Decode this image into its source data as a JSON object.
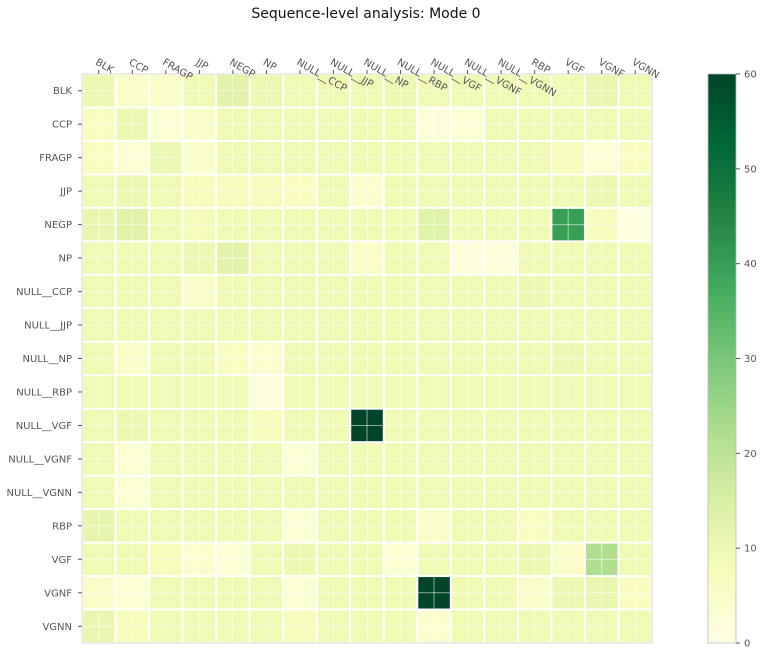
{
  "chart_data": {
    "type": "heatmap",
    "title": "Sequence-level analysis: Mode 0",
    "xlabel": "",
    "ylabel": "",
    "x_categories": [
      "BLK",
      "CCP",
      "FRAGP",
      "JJP",
      "NEGP",
      "NP",
      "NULL__CCP",
      "NULL__JJP",
      "NULL__NP",
      "NULL__RBP",
      "NULL__VGF",
      "NULL__VGNF",
      "NULL__VGNN",
      "RBP",
      "VGF",
      "VGNF",
      "VGNN"
    ],
    "y_categories": [
      "BLK",
      "CCP",
      "FRAGP",
      "JJP",
      "NEGP",
      "NP",
      "NULL__CCP",
      "NULL__JJP",
      "NULL__NP",
      "NULL__RBP",
      "NULL__VGF",
      "NULL__VGNF",
      "NULL__VGNN",
      "RBP",
      "VGF",
      "VGNF",
      "VGNN"
    ],
    "values": [
      [
        10,
        5,
        5,
        9,
        13,
        10,
        9,
        9,
        9,
        10,
        9,
        9,
        9,
        9,
        9,
        11,
        9
      ],
      [
        6,
        10,
        3,
        5,
        9,
        9,
        9,
        9,
        9,
        9,
        2,
        3,
        9,
        9,
        9,
        9,
        9
      ],
      [
        6,
        3,
        10,
        5,
        9,
        9,
        9,
        9,
        9,
        9,
        9,
        9,
        9,
        9,
        7,
        3,
        6
      ],
      [
        9,
        10,
        9,
        7,
        7,
        7,
        6,
        9,
        4,
        9,
        9,
        9,
        9,
        9,
        9,
        10,
        9
      ],
      [
        11,
        13,
        9,
        8,
        9,
        9,
        9,
        9,
        9,
        9,
        13,
        9,
        9,
        9,
        40,
        7,
        1
      ],
      [
        9,
        9,
        9,
        10,
        13,
        9,
        9,
        9,
        5,
        9,
        9,
        2,
        2,
        9,
        9,
        9,
        9
      ],
      [
        9,
        9,
        9,
        5,
        9,
        9,
        9,
        9,
        9,
        9,
        9,
        9,
        9,
        10,
        9,
        9,
        9
      ],
      [
        9,
        9,
        9,
        9,
        9,
        9,
        9,
        9,
        9,
        9,
        9,
        9,
        9,
        9,
        9,
        9,
        9
      ],
      [
        9,
        5,
        9,
        9,
        6,
        4,
        9,
        9,
        9,
        9,
        9,
        9,
        9,
        9,
        10,
        9,
        9
      ],
      [
        9,
        9,
        9,
        9,
        9,
        2,
        9,
        9,
        9,
        9,
        9,
        9,
        9,
        9,
        9,
        9,
        9
      ],
      [
        9,
        10,
        9,
        9,
        9,
        7,
        9,
        9,
        60,
        9,
        9,
        9,
        9,
        9,
        9,
        9,
        9
      ],
      [
        9,
        3,
        9,
        9,
        9,
        9,
        3,
        9,
        9,
        9,
        9,
        9,
        9,
        9,
        9,
        9,
        9
      ],
      [
        9,
        3,
        9,
        9,
        9,
        9,
        9,
        9,
        9,
        9,
        9,
        9,
        9,
        9,
        9,
        9,
        9
      ],
      [
        12,
        9,
        9,
        9,
        9,
        9,
        3,
        9,
        9,
        9,
        5,
        9,
        9,
        6,
        9,
        9,
        9
      ],
      [
        9,
        9,
        7,
        4,
        3,
        9,
        10,
        9,
        9,
        3,
        9,
        9,
        9,
        10,
        5,
        22,
        9
      ],
      [
        5,
        3,
        9,
        9,
        9,
        9,
        3,
        9,
        9,
        9,
        60,
        9,
        9,
        5,
        10,
        11,
        6
      ],
      [
        11,
        7,
        9,
        9,
        9,
        9,
        7,
        9,
        9,
        9,
        4,
        9,
        9,
        9,
        9,
        9,
        9
      ]
    ],
    "colorbar": {
      "min": 0,
      "max": 60,
      "ticks": [
        0,
        10,
        20,
        30,
        40,
        50,
        60
      ]
    },
    "colormap": "YlGn",
    "grid": true,
    "colors": {
      "cell_border": "#ffffff",
      "axes_border": "#d9d9d9",
      "tick": "#555555"
    }
  }
}
